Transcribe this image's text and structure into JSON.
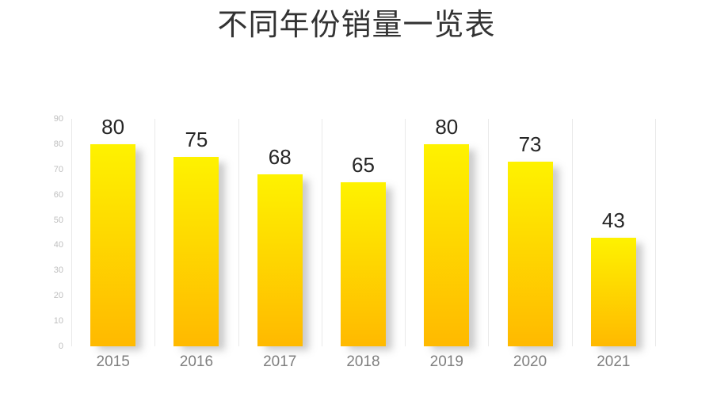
{
  "page": {
    "background": "#FFFFFF"
  },
  "header": {
    "title": "不同年份销量一览表"
  },
  "chart_data": {
    "type": "bar",
    "title": "不同年份销量一览表",
    "categories": [
      "2015",
      "2016",
      "2017",
      "2018",
      "2019",
      "2020",
      "2021"
    ],
    "values": [
      80,
      75,
      68,
      65,
      80,
      73,
      43
    ],
    "value_labels": [
      "80",
      "75",
      "68",
      "65",
      "80",
      "73",
      "43"
    ],
    "xlabel": "",
    "ylabel": "",
    "ylim": [
      0,
      90
    ],
    "yticks": [
      0,
      10,
      20,
      30,
      40,
      50,
      60,
      70,
      80,
      90
    ],
    "grid": "vertical-category-separators",
    "legend": "none",
    "colors": {
      "bar_gradient_top": "#FEF200",
      "bar_gradient_bottom": "#FFB900",
      "title_text": "#333333",
      "value_label_text": "#262626",
      "x_tick_text": "#7F7F7F",
      "y_tick_text": "#BFBFBF",
      "gridline": "#E9E9E9",
      "background": "#FFFFFF"
    }
  }
}
